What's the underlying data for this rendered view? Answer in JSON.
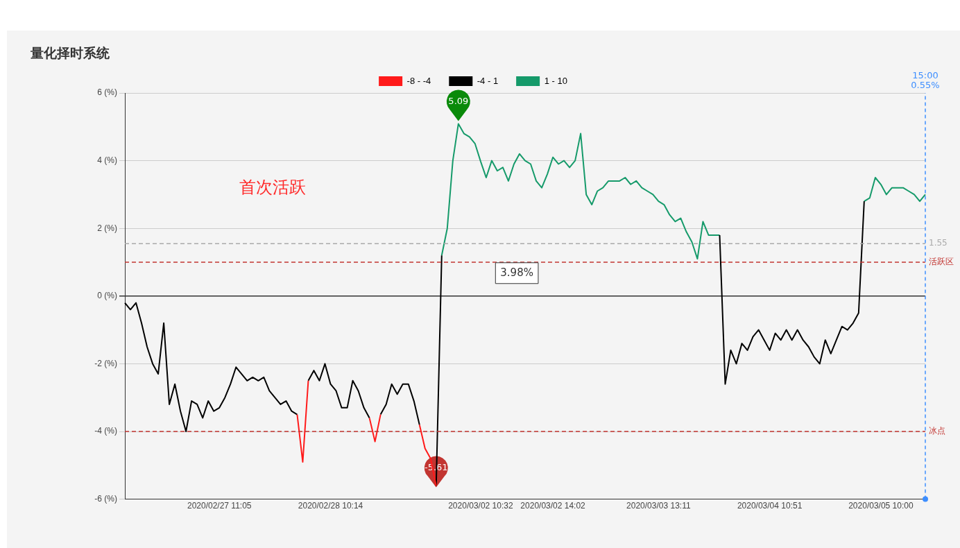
{
  "chart_data": {
    "type": "line",
    "title": "量化择时系统",
    "categories": [
      null,
      null,
      null,
      null,
      null,
      null,
      null,
      null,
      null,
      null,
      null,
      null,
      null,
      null,
      null,
      null,
      null,
      "2020/02/27 11:05",
      null,
      null,
      null,
      null,
      null,
      null,
      null,
      null,
      null,
      null,
      null,
      null,
      null,
      null,
      null,
      null,
      null,
      null,
      null,
      "2020/02/28 10:14",
      null,
      null,
      null,
      null,
      null,
      null,
      null,
      null,
      null,
      null,
      null,
      null,
      null,
      null,
      null,
      null,
      null,
      null,
      null,
      null,
      null,
      null,
      null,
      null,
      null,
      null,
      "2020/03/02 10:32",
      null,
      null,
      null,
      null,
      null,
      null,
      null,
      null,
      null,
      null,
      null,
      null,
      "2020/03/02 14:02",
      null,
      null,
      null,
      null,
      null,
      null,
      null,
      null,
      null,
      null,
      null,
      null,
      null,
      null,
      null,
      null,
      null,
      null,
      "2020/03/03 13:11",
      null,
      null,
      null,
      null,
      null,
      null,
      null,
      null,
      null,
      null,
      null,
      null,
      null,
      null,
      null,
      null,
      null,
      null,
      null,
      "2020/03/04 10:51",
      null,
      null,
      null,
      null,
      null,
      null,
      null,
      null,
      null,
      null,
      null,
      null,
      null,
      null,
      null,
      null,
      null,
      null,
      null,
      "2020/03/05 10:00",
      null,
      null,
      null,
      null,
      null,
      null,
      null,
      null
    ],
    "ylim": [
      -6,
      6
    ],
    "yticks": [
      {
        "value": -6,
        "label": "-6 (%)"
      },
      {
        "value": -4,
        "label": "-4 (%)"
      },
      {
        "value": -2,
        "label": "-2 (%)"
      },
      {
        "value": 0,
        "label": "0 (%)"
      },
      {
        "value": 2,
        "label": "2 (%)"
      },
      {
        "value": 4,
        "label": "4 (%)"
      },
      {
        "value": 6,
        "label": "6 (%)"
      }
    ],
    "grid": "y",
    "legend": "top",
    "marker": "none",
    "line_style": "solid",
    "series": [
      {
        "name": "-8 - -4",
        "color": "#ff1a1a",
        "values": [
          null,
          null,
          null,
          null,
          null,
          null,
          null,
          null,
          null,
          null,
          null,
          null,
          null,
          null,
          null,
          null,
          null,
          null,
          null,
          null,
          null,
          null,
          null,
          null,
          null,
          null,
          null,
          null,
          null,
          null,
          null,
          -3.5,
          -4.9,
          -2.5,
          null,
          null,
          null,
          null,
          null,
          null,
          null,
          null,
          null,
          null,
          -3.6,
          -4.3,
          -3.5,
          null,
          null,
          null,
          null,
          null,
          null,
          -3.8,
          -4.5,
          -4.8,
          -5.61,
          null,
          null,
          null,
          null,
          null,
          null,
          null,
          null,
          null,
          null,
          null,
          null,
          null,
          null,
          null,
          null,
          null,
          null,
          null,
          null,
          null,
          null,
          null,
          null,
          null,
          null,
          null,
          null,
          null,
          null,
          null,
          null,
          null,
          null,
          null,
          null,
          null,
          null,
          null,
          null,
          null,
          null,
          null,
          null,
          null,
          null,
          null,
          null,
          null,
          null,
          null,
          null,
          null,
          null,
          null,
          null,
          null,
          null,
          null,
          null,
          null,
          null,
          null,
          null,
          null,
          null,
          null,
          null,
          null,
          null,
          null,
          null,
          null,
          null,
          null,
          null,
          null,
          null,
          null,
          null,
          null,
          null,
          null,
          null,
          null,
          null,
          null,
          null
        ]
      },
      {
        "name": "-4 - 1",
        "color": "#000000",
        "values": [
          -0.2,
          -0.4,
          -0.2,
          -0.8,
          -1.5,
          -2.0,
          -2.3,
          -0.8,
          -3.2,
          -2.6,
          -3.4,
          -4.0,
          -3.1,
          -3.2,
          -3.6,
          -3.1,
          -3.4,
          -3.3,
          -3.0,
          -2.6,
          -2.1,
          -2.3,
          -2.5,
          -2.4,
          -2.5,
          -2.4,
          -2.8,
          -3.0,
          -3.2,
          -3.1,
          -3.4,
          -3.5,
          null,
          -2.5,
          -2.2,
          -2.5,
          -2.0,
          -2.6,
          -2.8,
          -3.3,
          -3.3,
          -2.5,
          -2.8,
          -3.3,
          -3.6,
          null,
          -3.5,
          -3.2,
          -2.6,
          -2.9,
          -2.6,
          -2.6,
          -3.1,
          -3.8,
          null,
          null,
          -5.61,
          1.2,
          null,
          null,
          null,
          null,
          null,
          null,
          null,
          null,
          null,
          null,
          null,
          null,
          null,
          null,
          null,
          null,
          null,
          null,
          null,
          null,
          null,
          null,
          null,
          null,
          null,
          null,
          null,
          null,
          null,
          null,
          null,
          null,
          null,
          null,
          null,
          null,
          null,
          null,
          null,
          null,
          null,
          null,
          null,
          null,
          null,
          null,
          null,
          null,
          null,
          1.8,
          -2.6,
          -1.6,
          -2.0,
          -1.4,
          -1.6,
          -1.2,
          -1.0,
          -1.3,
          -1.6,
          -1.1,
          -1.3,
          -1.0,
          -1.3,
          -1.0,
          -1.3,
          -1.5,
          -1.8,
          -2.0,
          -1.3,
          -1.7,
          -1.3,
          -0.9,
          -1.0,
          -0.8,
          -0.5,
          2.8,
          null,
          null,
          null,
          null,
          null,
          null,
          null,
          null,
          null,
          null,
          null
        ]
      },
      {
        "name": "1 - 10",
        "color": "#159a6a",
        "values": [
          null,
          null,
          null,
          null,
          null,
          null,
          null,
          null,
          null,
          null,
          null,
          null,
          null,
          null,
          null,
          null,
          null,
          null,
          null,
          null,
          null,
          null,
          null,
          null,
          null,
          null,
          null,
          null,
          null,
          null,
          null,
          null,
          null,
          null,
          null,
          null,
          null,
          null,
          null,
          null,
          null,
          null,
          null,
          null,
          null,
          null,
          null,
          null,
          null,
          null,
          null,
          null,
          null,
          null,
          null,
          null,
          null,
          1.2,
          2.0,
          4.0,
          5.09,
          4.8,
          4.7,
          4.5,
          3.98,
          3.5,
          4.0,
          3.7,
          3.8,
          3.4,
          3.9,
          4.2,
          4.0,
          3.9,
          3.4,
          3.2,
          3.6,
          4.1,
          3.9,
          4.0,
          3.8,
          4.0,
          4.8,
          3.0,
          2.7,
          3.1,
          3.2,
          3.4,
          3.4,
          3.4,
          3.5,
          3.3,
          3.4,
          3.2,
          3.1,
          3.0,
          2.8,
          2.7,
          2.4,
          2.2,
          2.3,
          1.9,
          1.6,
          1.1,
          2.2,
          1.8,
          1.8,
          1.8,
          null,
          null,
          null,
          null,
          null,
          null,
          null,
          null,
          null,
          null,
          null,
          null,
          null,
          null,
          null,
          null,
          null,
          null,
          null,
          null,
          null,
          null,
          null,
          null,
          null,
          2.8,
          2.9,
          3.5,
          3.3,
          3.0,
          3.2,
          3.2,
          3.2,
          3.1,
          3.0,
          2.8,
          3.0
        ]
      }
    ],
    "ref_lines": [
      {
        "axis": "y",
        "value": 1,
        "label": "活跃区",
        "color": "#c23531",
        "line_style": "dashed"
      },
      {
        "axis": "y",
        "value": -4,
        "label": "冰点",
        "color": "#c23531",
        "line_style": "dashed"
      },
      {
        "axis": "y",
        "value": 1.55,
        "label": "1.55",
        "color": "#aaaaaa",
        "line_style": "dashed"
      }
    ],
    "annotations": [
      "首次活跃",
      {
        "text": "5.09",
        "y": 5.09
      },
      {
        "text": "-5.61",
        "y": -5.61
      },
      "3.98%",
      "15:00",
      "0.55%"
    ]
  }
}
